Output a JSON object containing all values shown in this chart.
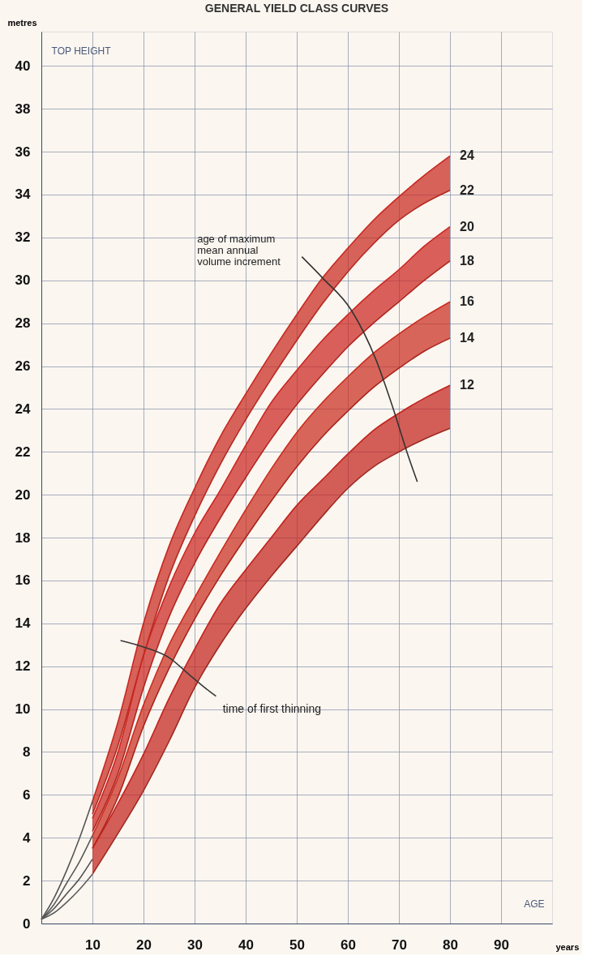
{
  "chart_data": {
    "type": "line",
    "title": "GENERAL YIELD CLASS CURVES",
    "xlabel": "years",
    "ylabel": "metres",
    "xlim": [
      0,
      100
    ],
    "ylim": [
      0,
      41.6
    ],
    "xticks": [
      10,
      20,
      30,
      40,
      50,
      60,
      70,
      80,
      90
    ],
    "yticks": [
      0,
      2,
      4,
      6,
      8,
      10,
      12,
      14,
      16,
      18,
      20,
      22,
      24,
      26,
      28,
      30,
      32,
      34,
      36,
      38,
      40
    ],
    "grid": true,
    "line_style": "solid",
    "x": [
      10,
      15,
      20,
      25,
      30,
      35,
      40,
      45,
      50,
      55,
      60,
      65,
      70,
      75,
      80
    ],
    "series": [
      {
        "name": "24",
        "color": "#c8281f",
        "values": [
          5.7,
          9.4,
          14.0,
          17.6,
          20.3,
          22.7,
          24.7,
          26.6,
          28.4,
          30.1,
          31.5,
          32.8,
          33.9,
          34.9,
          35.8
        ],
        "upper": [
          5.7,
          9.4,
          14.0,
          17.6,
          20.3,
          22.7,
          24.7,
          26.6,
          28.4,
          30.1,
          31.5,
          32.8,
          33.9,
          34.9,
          35.8
        ],
        "lower": [
          5.1,
          8.3,
          12.5,
          16.2,
          19.0,
          21.4,
          23.5,
          25.4,
          27.2,
          28.9,
          30.4,
          31.7,
          32.8,
          33.6,
          34.2
        ]
      },
      {
        "name": "22",
        "color": "#b42a22",
        "values": [
          5.1,
          8.3,
          12.5,
          16.2,
          19.0,
          21.4,
          23.5,
          25.4,
          27.2,
          28.9,
          30.4,
          31.7,
          32.8,
          33.6,
          34.2
        ]
      },
      {
        "name": "20",
        "color": "#cc2620",
        "values": [
          4.9,
          8.0,
          12.5,
          15.7,
          18.2,
          20.2,
          22.3,
          24.3,
          25.8,
          27.2,
          28.4,
          29.5,
          30.5,
          31.6,
          32.5
        ],
        "upper": [
          4.9,
          8.0,
          12.5,
          15.7,
          18.2,
          20.2,
          22.3,
          24.3,
          25.8,
          27.2,
          28.4,
          29.5,
          30.5,
          31.6,
          32.5
        ],
        "lower": [
          4.3,
          7.0,
          11.0,
          14.3,
          16.8,
          18.9,
          20.8,
          22.6,
          24.2,
          25.6,
          26.9,
          28.0,
          29.0,
          30.0,
          30.9
        ]
      },
      {
        "name": "18",
        "color": "#b02620",
        "values": [
          4.3,
          7.0,
          11.0,
          14.3,
          16.8,
          18.9,
          20.8,
          22.6,
          24.2,
          25.6,
          26.9,
          28.0,
          29.0,
          30.0,
          30.9
        ]
      },
      {
        "name": "16",
        "color": "#ca2c1e",
        "values": [
          4.1,
          6.8,
          10.2,
          13.0,
          15.2,
          17.3,
          19.3,
          21.2,
          22.9,
          24.3,
          25.5,
          26.6,
          27.5,
          28.3,
          29.0
        ],
        "upper": [
          4.1,
          6.8,
          10.2,
          13.0,
          15.2,
          17.3,
          19.3,
          21.2,
          22.9,
          24.3,
          25.5,
          26.6,
          27.5,
          28.3,
          29.0
        ],
        "lower": [
          3.5,
          5.9,
          9.2,
          11.9,
          14.2,
          16.2,
          18.0,
          19.7,
          21.3,
          22.7,
          23.9,
          25.0,
          25.9,
          26.7,
          27.3
        ]
      },
      {
        "name": "14",
        "color": "#a8241c",
        "values": [
          3.5,
          5.9,
          9.2,
          11.9,
          14.2,
          16.2,
          18.0,
          19.7,
          21.3,
          22.7,
          23.9,
          25.0,
          25.9,
          26.7,
          27.3
        ]
      },
      {
        "name": "12",
        "color": "#c2221c",
        "values": [
          3.5,
          5.6,
          7.9,
          10.5,
          12.8,
          14.9,
          16.5,
          18.0,
          19.5,
          20.7,
          21.9,
          23.0,
          23.8,
          24.5,
          25.1
        ],
        "upper": [
          3.5,
          5.6,
          7.9,
          10.5,
          12.8,
          14.9,
          16.5,
          18.0,
          19.5,
          20.7,
          21.9,
          23.0,
          23.8,
          24.5,
          25.1
        ],
        "lower": [
          2.3,
          4.2,
          6.2,
          8.5,
          11.0,
          13.0,
          14.7,
          16.2,
          17.6,
          19.0,
          20.3,
          21.3,
          22.0,
          22.6,
          23.1
        ]
      },
      {
        "color": "#9e2a22",
        "values": [
          2.3,
          4.2,
          6.2,
          8.5,
          11.0,
          13.0,
          14.7,
          16.2,
          17.6,
          19.0,
          20.3,
          21.3,
          22.0,
          22.6,
          23.1
        ]
      },
      {
        "color": "#555555",
        "x": [
          0,
          2.5,
          5,
          7.5,
          10
        ],
        "values": [
          0.2,
          1.2,
          2.5,
          4.0,
          5.7
        ]
      },
      {
        "color": "#5a5a5a",
        "x": [
          0,
          2.5,
          5,
          7.5,
          10
        ],
        "values": [
          0.2,
          0.9,
          1.9,
          2.9,
          4.1
        ]
      },
      {
        "color": "#505050",
        "x": [
          0,
          2.5,
          5,
          7.5,
          10
        ],
        "values": [
          0.2,
          0.7,
          1.4,
          2.1,
          3.0
        ]
      },
      {
        "color": "#5f5f5f",
        "x": [
          0,
          2.5,
          5,
          7.5,
          10
        ],
        "values": [
          0.2,
          0.5,
          1.0,
          1.6,
          2.3
        ]
      },
      {
        "color": "#333333",
        "x": [
          51,
          55.1,
          60.7,
          65.5,
          68.9,
          71.7,
          73.6
        ],
        "values": [
          31.1,
          30.1,
          28.6,
          26.3,
          24.0,
          21.9,
          20.6
        ]
      },
      {
        "color": "#383838",
        "x": [
          15.5,
          20,
          25,
          29,
          32,
          34.2
        ],
        "values": [
          13.2,
          12.9,
          12.4,
          11.6,
          11.0,
          10.6
        ]
      }
    ],
    "annotations": [
      "TOP HEIGHT",
      "AGE",
      "age of maximum\nmean annual\nvolume increment",
      "time of first thinning"
    ]
  }
}
